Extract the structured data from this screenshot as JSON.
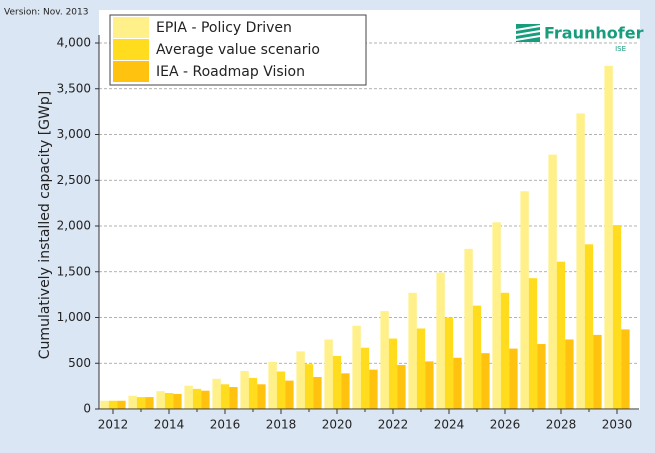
{
  "chart_data": {
    "type": "bar",
    "version": "Version: Nov. 2013",
    "logo_text": "Fraunhofer",
    "logo_subtext": "ISE",
    "y_label": "Cumulatively installed capacity [GWp]",
    "categories": [
      "2012",
      null,
      "2014",
      null,
      "2016",
      null,
      "2018",
      null,
      "2020",
      null,
      "2022",
      null,
      "2024",
      null,
      "2026",
      null,
      "2028",
      null,
      "2030"
    ],
    "series": [
      {
        "name": "EPIA - Policy Driven",
        "color": "#fff08a",
        "values": [
          90,
          145,
          195,
          255,
          330,
          415,
          515,
          630,
          760,
          910,
          1070,
          1270,
          1490,
          1750,
          2040,
          2380,
          2780,
          3230,
          3750
        ]
      },
      {
        "name": "Average value scenario",
        "color": "#ffdc1e",
        "values": [
          90,
          130,
          175,
          220,
          270,
          340,
          410,
          490,
          580,
          670,
          770,
          880,
          1000,
          1130,
          1270,
          1430,
          1610,
          1800,
          2010
        ]
      },
      {
        "name": "IEA - Roadmap Vision",
        "color": "#ffc20e",
        "values": [
          90,
          130,
          165,
          200,
          240,
          270,
          310,
          350,
          390,
          430,
          480,
          520,
          560,
          610,
          660,
          710,
          760,
          810,
          870
        ]
      }
    ],
    "ylim": [
      0,
      4000
    ],
    "yticks": [
      0,
      500,
      {
        "value": 1000,
        "label": "1,000"
      },
      {
        "value": 1500,
        "label": "1,500"
      },
      {
        "value": 2000,
        "label": "2,000"
      },
      {
        "value": 2500,
        "label": "2,500"
      },
      {
        "value": 3000,
        "label": "3,000"
      },
      {
        "value": 3500,
        "label": "3,500"
      },
      {
        "value": 4000,
        "label": "4,000"
      }
    ],
    "grid": true,
    "legend": "top-left"
  }
}
